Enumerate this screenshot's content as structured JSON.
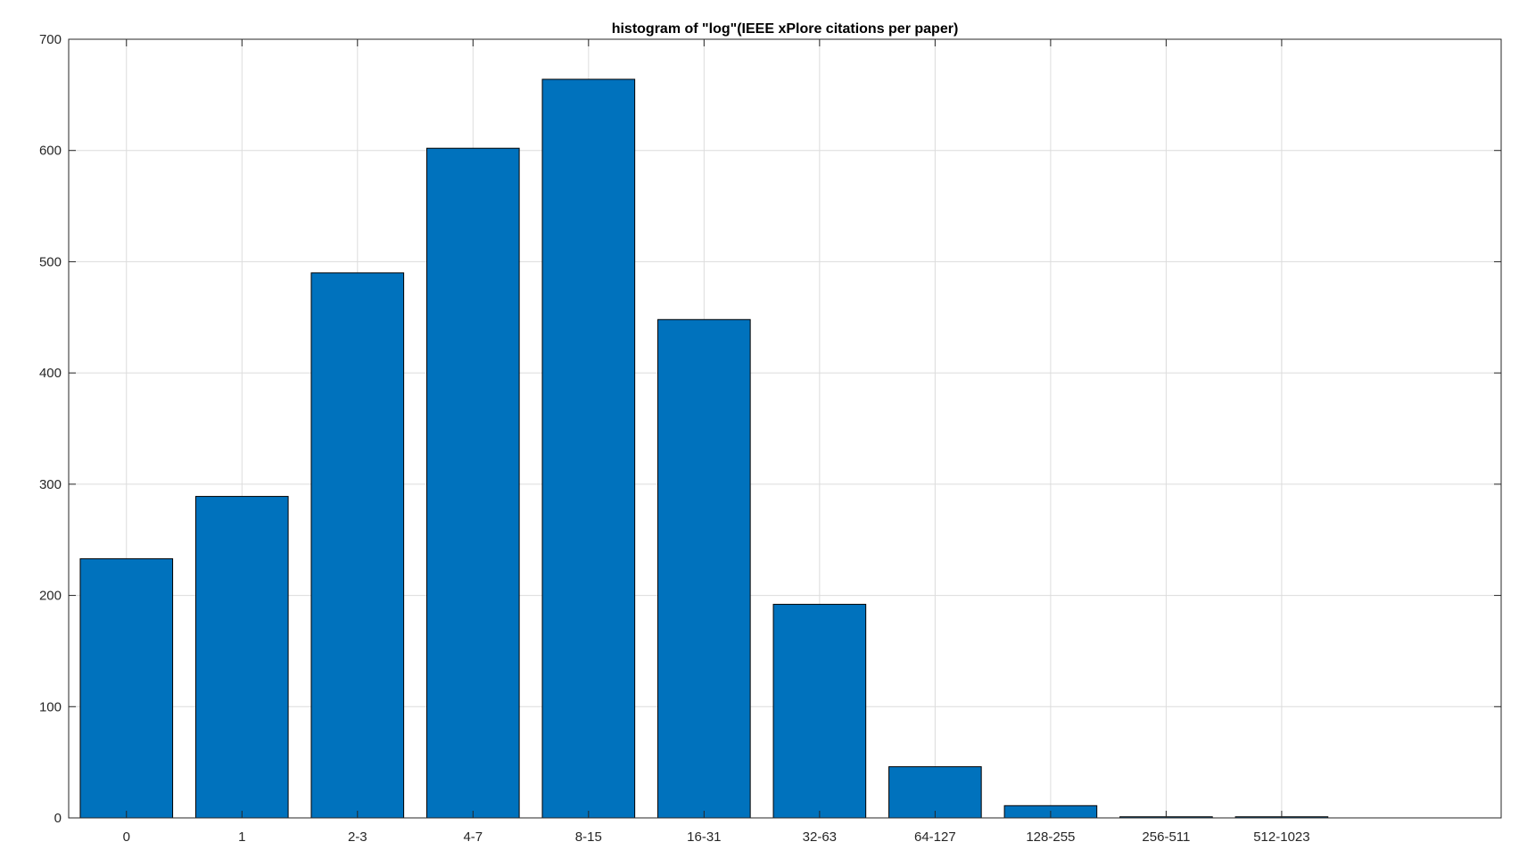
{
  "chart_data": {
    "type": "bar",
    "title": "histogram of \"log\"(IEEE xPlore citations per paper)",
    "xlabel": "",
    "ylabel": "",
    "categories": [
      "0",
      "1",
      "2-3",
      "4-7",
      "8-15",
      "16-31",
      "32-63",
      "64-127",
      "128-255",
      "256-511",
      "512-1023"
    ],
    "values": [
      233,
      289,
      490,
      602,
      664,
      448,
      192,
      46,
      11,
      1,
      1
    ],
    "ylim": [
      0,
      700
    ],
    "yticks": [
      0,
      100,
      200,
      300,
      400,
      500,
      600,
      700
    ],
    "xlim": [
      -0.5,
      11.9
    ],
    "grid": true,
    "bar_color": "#0072BD",
    "bar_edge_color": "#000000"
  }
}
